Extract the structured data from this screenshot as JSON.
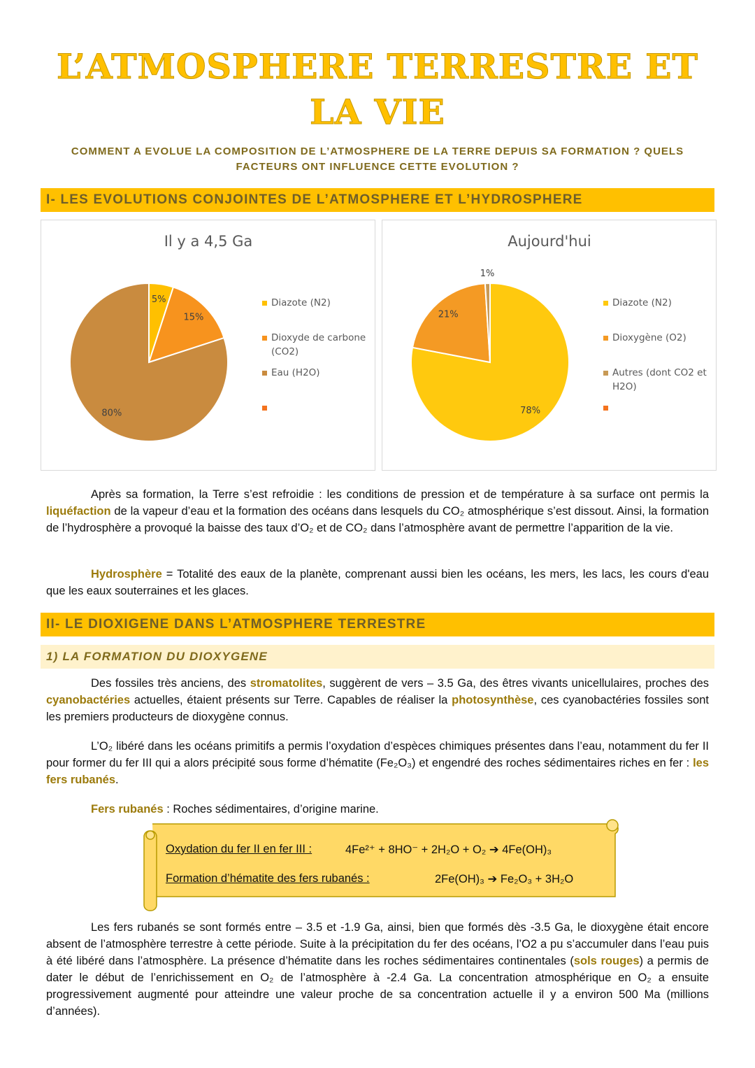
{
  "header": {
    "title_line1": "L’ATMOSPHERE TERRESTRE ET",
    "title_line2": "LA VIE",
    "question": "COMMENT A EVOLUE LA COMPOSITION DE L’ATMOSPHERE DE LA TERRE DEPUIS SA FORMATION ? QUELS FACTEURS ONT INFLUENCE CETTE EVOLUTION ?"
  },
  "section1": {
    "heading": "I- LES EVOLUTIONS CONJOINTES DE L’ATMOSPHERE ET L’HYDROSPHERE",
    "paragraph": [
      "Après sa formation, la Terre s’est refroidie : les conditions de pression et de température à sa surface ont permis la ",
      "liquéfaction",
      " de la vapeur d’eau et la formation des océans dans lesquels du CO₂ atmosphérique s’est dissout. Ainsi, la formation de l’hydrosphère a provoqué la baisse des taux d’O₂ et de CO₂ dans l’atmosphère avant de permettre l’apparition de la vie."
    ],
    "definition": [
      "Hydrosphère",
      " = Totalité des eaux de la planète, comprenant aussi bien les océans, les mers, les lacs, les cours d'eau que les eaux souterraines et les glaces."
    ]
  },
  "chart_data": [
    {
      "type": "pie",
      "title": "Il y a 4,5 Ga",
      "categories": [
        "Diazote (N2)",
        "Dioxyde de carbone (CO2)",
        "Eau (H2O)"
      ],
      "values": [
        5,
        15,
        80
      ],
      "value_labels": [
        "5%",
        "15%",
        "80%"
      ],
      "colors": [
        "#FFC000",
        "#F7931E",
        "#C98B3F"
      ]
    },
    {
      "type": "pie",
      "title": "Aujourd'hui",
      "categories": [
        "Diazote (N2)",
        "Dioxygène (O2)",
        "Autres (dont CO2 et H2O)"
      ],
      "values": [
        78,
        21,
        1
      ],
      "value_labels": [
        "78%",
        "21%",
        "1%"
      ],
      "colors": [
        "#FFC90E",
        "#F49A24",
        "#C89A56"
      ]
    }
  ],
  "section2": {
    "heading": "II- LE DIOXIGENE DANS L’ATMOSPHERE TERRESTRE",
    "subheading": "1) LA FORMATION DU DIOXYGENE",
    "paragraph1": [
      "Des fossiles très anciens, des ",
      "stromatolites",
      ", suggèrent de vers – 3.5 Ga, des êtres vivants unicellulaires, proches des ",
      "cyanobactéries",
      " actuelles, étaient présents sur Terre. Capables de réaliser la ",
      "photosynthèse",
      ", ces cyanobactéries fossiles sont les premiers producteurs de dioxygène connus."
    ],
    "paragraph2": [
      "L’O₂ libéré dans les océans primitifs a permis l’oxydation d’espèces chimiques présentes dans l’eau, notamment du fer II pour former du fer III qui a alors précipité sous forme d’hématite (Fe₂O₃) et engendré des roches sédimentaires riches en fer : ",
      "les fers rubanés",
      "."
    ],
    "definition": [
      "Fers rubanés",
      " : Roches sédimentaires, d’origine marine."
    ],
    "equations": [
      {
        "label": "Oxydation du fer II en fer III :",
        "equation": "4Fe²⁺ + 8HO⁻ + 2H₂O + O₂ ➔ 4Fe(OH)₃"
      },
      {
        "label": "Formation d’hématite des fers rubanés :",
        "equation": "2Fe(OH)₃ ➔ Fe₂O₃ + 3H₂O"
      }
    ],
    "paragraph3": [
      "Les fers rubanés se sont formés entre – 3.5 et -1.9 Ga, ainsi, bien que formés dès -3.5 Ga, le dioxygène était encore absent de l’atmosphère terrestre à cette période. Suite à la précipitation du fer des océans, l’O2 a pu s’accumuler dans l’eau puis à été libéré dans l’atmosphère. La présence d’hématite dans les roches sédimentaires continentales (",
      "sols rouges",
      ") a permis de dater le début de l’enrichissement en O₂ de l’atmosphère à -2.4 Ga. La concentration atmosphérique en O₂ a ensuite progressivement augmenté pour atteindre une valeur proche de sa concentration actuelle il y a environ 500 Ma (millions d’années)."
    ]
  }
}
